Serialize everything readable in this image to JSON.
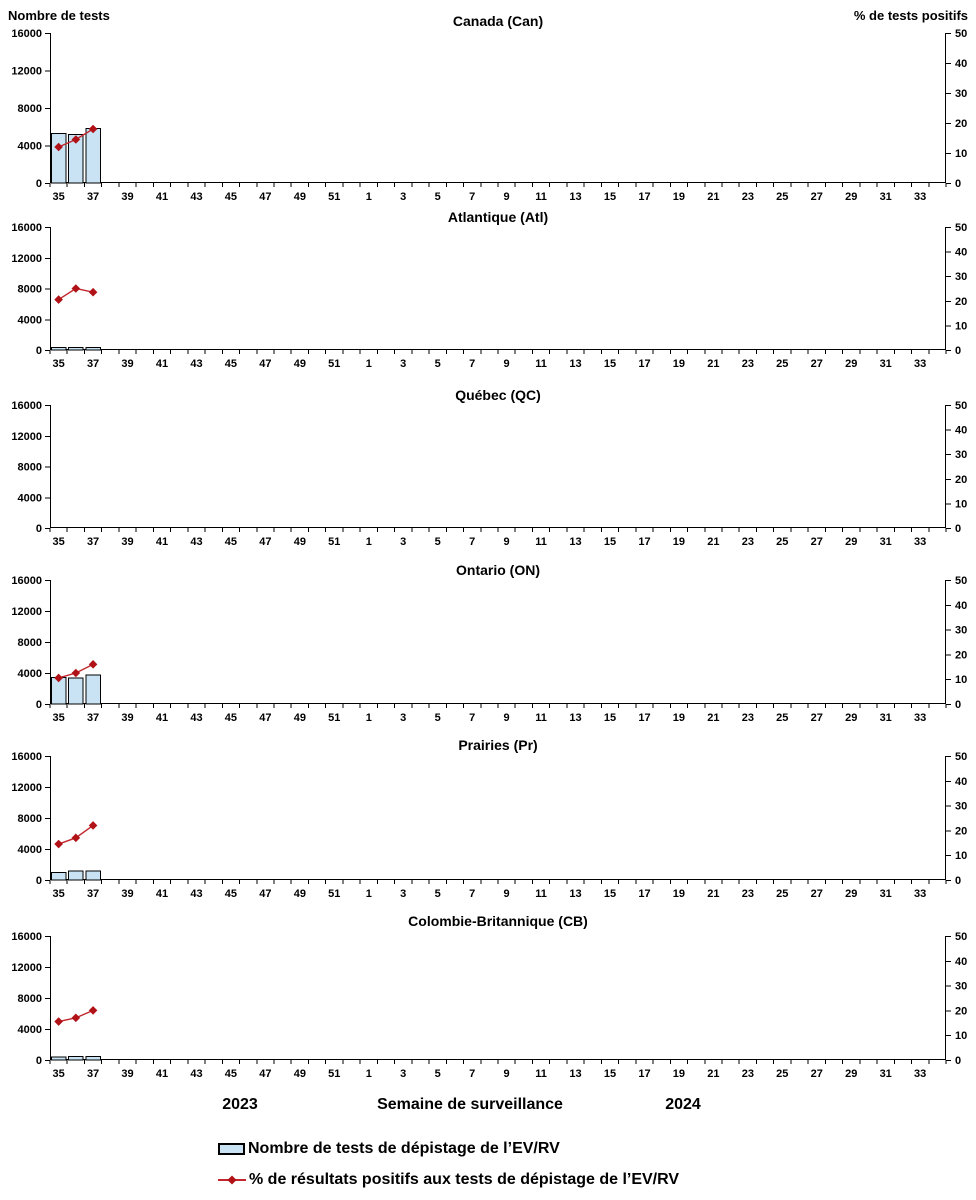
{
  "axes": {
    "left_label": "Nombre de tests",
    "right_label": "% de tests positifs",
    "left_ticks": [
      0,
      4000,
      8000,
      12000,
      16000
    ],
    "left_max": 16000,
    "right_ticks": [
      0,
      10,
      20,
      30,
      40,
      50
    ],
    "right_max": 50,
    "weeks": [
      35,
      36,
      37,
      38,
      39,
      40,
      41,
      42,
      43,
      44,
      45,
      46,
      47,
      48,
      49,
      50,
      51,
      52,
      1,
      2,
      3,
      4,
      5,
      6,
      7,
      8,
      9,
      10,
      11,
      12,
      13,
      14,
      15,
      16,
      17,
      18,
      19,
      20,
      21,
      22,
      23,
      24,
      25,
      26,
      27,
      28,
      29,
      30,
      31,
      32,
      33,
      34
    ]
  },
  "chart_data": [
    {
      "type": "bar+line",
      "title": "Canada (Can)",
      "slug": "canada",
      "weeks": [
        35,
        36,
        37
      ],
      "bars_tests": [
        5300,
        5200,
        5800
      ],
      "line_pct_positive": [
        12,
        14.5,
        18
      ]
    },
    {
      "type": "bar+line",
      "title": "Atlantique (Atl)",
      "slug": "atlantique",
      "weeks": [
        35,
        36,
        37
      ],
      "bars_tests": [
        300,
        350,
        350
      ],
      "line_pct_positive": [
        20.5,
        25,
        23.5
      ]
    },
    {
      "type": "bar+line",
      "title": "Québec (QC)",
      "slug": "quebec",
      "weeks": [],
      "bars_tests": [],
      "line_pct_positive": []
    },
    {
      "type": "bar+line",
      "title": "Ontario (ON)",
      "slug": "ontario",
      "weeks": [
        35,
        36,
        37
      ],
      "bars_tests": [
        3400,
        3350,
        3750
      ],
      "line_pct_positive": [
        10.5,
        12.5,
        16
      ]
    },
    {
      "type": "bar+line",
      "title": "Prairies (Pr)",
      "slug": "prairies",
      "weeks": [
        35,
        36,
        37
      ],
      "bars_tests": [
        1000,
        1150,
        1150
      ],
      "line_pct_positive": [
        14.5,
        17,
        22
      ]
    },
    {
      "type": "bar+line",
      "title": "Colombie-Britannique (CB)",
      "slug": "colombie-britannique",
      "weeks": [
        35,
        36,
        37
      ],
      "bars_tests": [
        400,
        450,
        450
      ],
      "line_pct_positive": [
        15.5,
        17,
        20
      ]
    }
  ],
  "footer": {
    "year_left": "2023",
    "x_label": "Semaine de surveillance",
    "year_right": "2024"
  },
  "legend": {
    "items": [
      {
        "swatch": "bar",
        "label": "Nombre de tests de dépistage de l’EV/RV"
      },
      {
        "swatch": "line",
        "label": "% de résultats positifs aux tests de dépistage de l’EV/RV"
      }
    ]
  },
  "colors": {
    "bar_fill": "#C9E3F5",
    "bar_border": "#000000",
    "line": "#C1272D",
    "marker": "#B01218",
    "axis": "#000000"
  }
}
